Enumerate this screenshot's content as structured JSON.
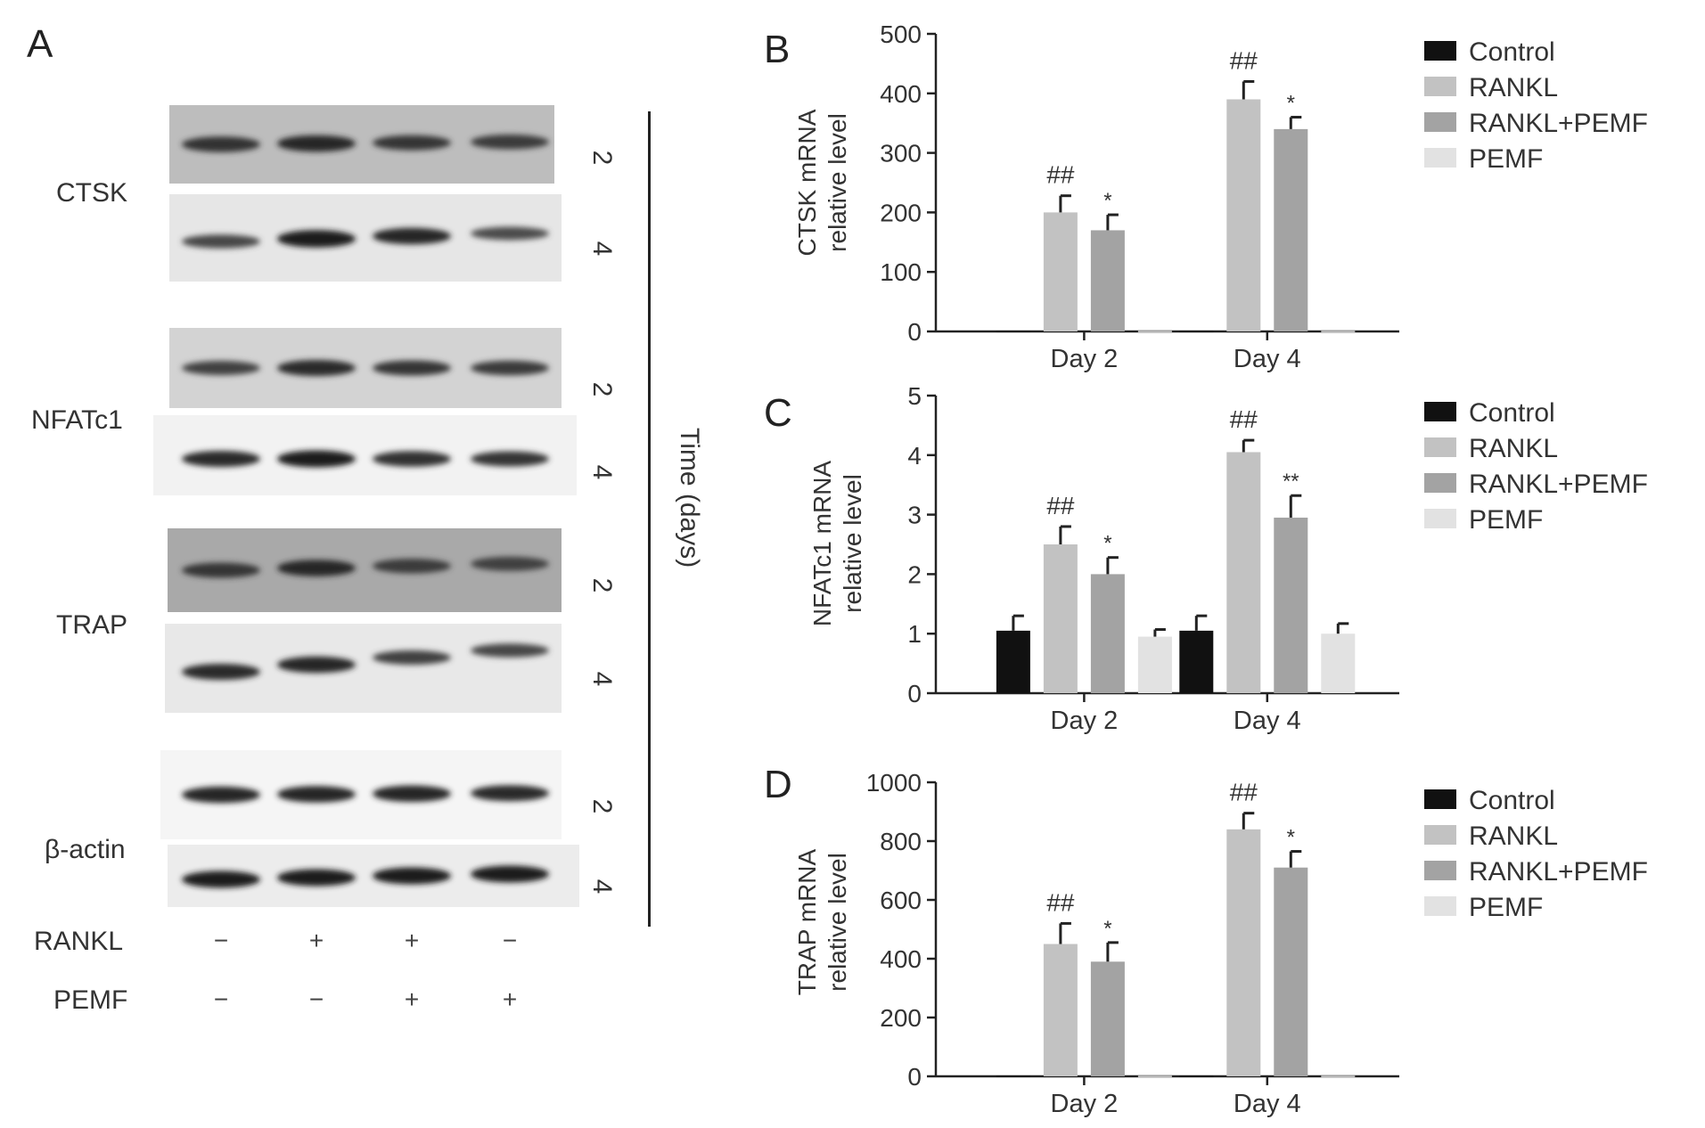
{
  "panel_a": {
    "letter": "A",
    "proteins": [
      {
        "name": "CTSK"
      },
      {
        "name": "NFATc1"
      },
      {
        "name": "TRAP"
      },
      {
        "name": "β-actin"
      }
    ],
    "days": [
      "2",
      "4"
    ],
    "time_label": "Time (days)",
    "treatments": [
      {
        "name": "RANKL",
        "signs": [
          "−",
          "+",
          "+",
          "−"
        ]
      },
      {
        "name": "PEMF",
        "signs": [
          "−",
          "−",
          "+",
          "+"
        ]
      }
    ],
    "band_intensity": {
      "CTSK": {
        "2": [
          0.75,
          0.85,
          0.7,
          0.65
        ],
        "4": [
          0.55,
          0.95,
          0.85,
          0.5
        ]
      },
      "NFATc1": {
        "2": [
          0.6,
          0.8,
          0.7,
          0.65
        ],
        "4": [
          0.8,
          0.9,
          0.75,
          0.7
        ]
      },
      "TRAP": {
        "2": [
          0.7,
          0.85,
          0.65,
          0.6
        ],
        "4": [
          0.8,
          0.85,
          0.6,
          0.55
        ]
      },
      "β-actin": {
        "2": [
          0.85,
          0.85,
          0.85,
          0.8
        ],
        "4": [
          0.9,
          0.9,
          0.9,
          0.9
        ]
      }
    },
    "background_tone": {
      "CTSK": {
        "2": "#bdbdbd",
        "4": "#e6e6e6"
      },
      "NFATc1": {
        "2": "#d3d3d3",
        "4": "#f2f2f2"
      },
      "TRAP": {
        "2": "#a9a9a9",
        "4": "#e8e8e8"
      },
      "β-actin": {
        "2": "#f5f5f5",
        "4": "#ececec"
      }
    }
  },
  "legend": [
    {
      "name": "Control",
      "color": "#111111"
    },
    {
      "name": "RANKL",
      "color": "#c2c2c2"
    },
    {
      "name": "RANKL+PEMF",
      "color": "#a3a3a3"
    },
    {
      "name": "PEMF",
      "color": "#e2e2e2"
    }
  ],
  "chart_data": [
    {
      "panel": "B",
      "type": "bar",
      "ylabel": [
        "CTSK mRNA",
        "relative level"
      ],
      "categories": [
        "Day 2",
        "Day 4"
      ],
      "ylim": [
        0,
        500
      ],
      "yticks": [
        0,
        100,
        200,
        300,
        400,
        500
      ],
      "series": [
        {
          "name": "Control",
          "values": [
            1,
            1
          ],
          "errors": [
            0,
            0
          ]
        },
        {
          "name": "RANKL",
          "values": [
            200,
            390
          ],
          "errors": [
            28,
            30
          ]
        },
        {
          "name": "RANKL+PEMF",
          "values": [
            170,
            340
          ],
          "errors": [
            26,
            20
          ]
        },
        {
          "name": "PEMF",
          "values": [
            1,
            1
          ],
          "errors": [
            0,
            0
          ]
        }
      ],
      "annotations": [
        {
          "category": 0,
          "series": 1,
          "text": "##"
        },
        {
          "category": 0,
          "series": 2,
          "text": "*"
        },
        {
          "category": 1,
          "series": 1,
          "text": "##"
        },
        {
          "category": 1,
          "series": 2,
          "text": "*"
        }
      ]
    },
    {
      "panel": "C",
      "type": "bar",
      "ylabel": [
        "NFATc1 mRNA",
        "relative level"
      ],
      "categories": [
        "Day 2",
        "Day 4"
      ],
      "ylim": [
        0,
        5
      ],
      "yticks": [
        0,
        1,
        2,
        3,
        4,
        5
      ],
      "series": [
        {
          "name": "Control",
          "values": [
            1.05,
            1.05
          ],
          "errors": [
            0.25,
            0.25
          ]
        },
        {
          "name": "RANKL",
          "values": [
            2.5,
            4.05
          ],
          "errors": [
            0.3,
            0.2
          ]
        },
        {
          "name": "RANKL+PEMF",
          "values": [
            2.0,
            2.95
          ],
          "errors": [
            0.28,
            0.37
          ]
        },
        {
          "name": "PEMF",
          "values": [
            0.95,
            1.0
          ],
          "errors": [
            0.12,
            0.17
          ]
        }
      ],
      "annotations": [
        {
          "category": 0,
          "series": 1,
          "text": "##"
        },
        {
          "category": 0,
          "series": 2,
          "text": "*"
        },
        {
          "category": 1,
          "series": 1,
          "text": "##"
        },
        {
          "category": 1,
          "series": 2,
          "text": "**"
        }
      ]
    },
    {
      "panel": "D",
      "type": "bar",
      "ylabel": [
        "TRAP mRNA",
        "relative level"
      ],
      "categories": [
        "Day 2",
        "Day 4"
      ],
      "ylim": [
        0,
        1000
      ],
      "yticks": [
        0,
        200,
        400,
        600,
        800,
        1000
      ],
      "series": [
        {
          "name": "Control",
          "values": [
            2,
            2
          ],
          "errors": [
            0,
            0
          ]
        },
        {
          "name": "RANKL",
          "values": [
            450,
            840
          ],
          "errors": [
            70,
            55
          ]
        },
        {
          "name": "RANKL+PEMF",
          "values": [
            390,
            710
          ],
          "errors": [
            65,
            55
          ]
        },
        {
          "name": "PEMF",
          "values": [
            2,
            2
          ],
          "errors": [
            0,
            0
          ]
        }
      ],
      "annotations": [
        {
          "category": 0,
          "series": 1,
          "text": "##"
        },
        {
          "category": 0,
          "series": 2,
          "text": "*"
        },
        {
          "category": 1,
          "series": 1,
          "text": "##"
        },
        {
          "category": 1,
          "series": 2,
          "text": "*"
        }
      ]
    }
  ]
}
